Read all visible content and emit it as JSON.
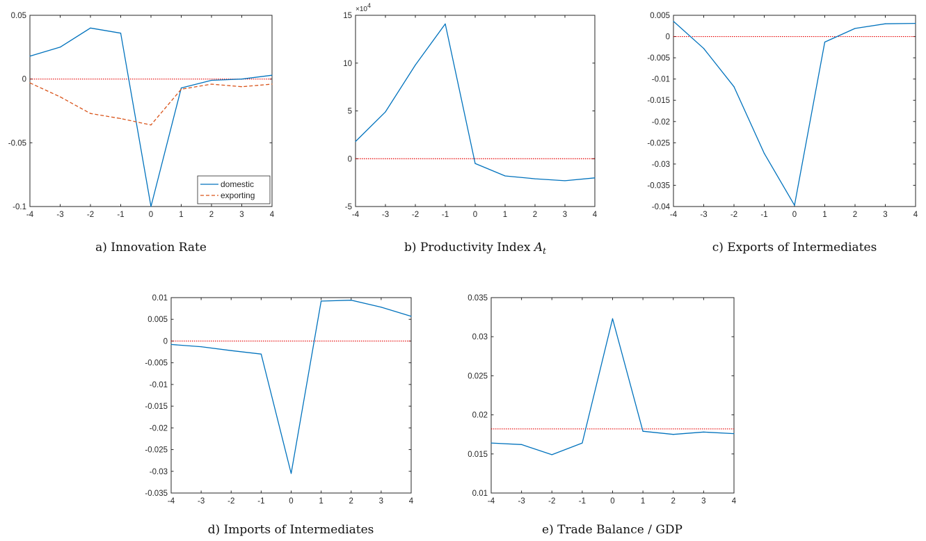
{
  "chart_data": [
    {
      "type": "line",
      "caption": "a) Innovation Rate",
      "x": [
        -4,
        -3,
        -2,
        -1,
        0,
        1,
        2,
        3,
        4
      ],
      "xlim": [
        -4,
        4
      ],
      "ylim": [
        -0.1,
        0.05
      ],
      "yticks": [
        -0.1,
        -0.05,
        0,
        0.05
      ],
      "ytick_labels": [
        "-0.1",
        "-0.05",
        "0",
        "0.05"
      ],
      "reference_line": 0,
      "series": [
        {
          "name": "domestic",
          "style": "solid",
          "color": "#0072BD",
          "values": [
            0.018,
            0.025,
            0.04,
            0.036,
            -0.1,
            -0.007,
            -0.001,
            0.0,
            0.003
          ]
        },
        {
          "name": "exporting",
          "style": "dashed",
          "color": "#D95319",
          "values": [
            -0.003,
            -0.014,
            -0.027,
            -0.031,
            -0.036,
            -0.008,
            -0.004,
            -0.006,
            -0.004
          ]
        }
      ],
      "legend": "bottom-right"
    },
    {
      "type": "line",
      "caption": "b) Productivity Index A",
      "caption_sub": "t",
      "x": [
        -4,
        -3,
        -2,
        -1,
        0,
        1,
        2,
        3,
        4
      ],
      "xlim": [
        -4,
        4
      ],
      "ylim": [
        -5,
        15
      ],
      "yticks": [
        -5,
        0,
        5,
        10,
        15
      ],
      "ytick_labels": [
        "-5",
        "0",
        "5",
        "10",
        "15"
      ],
      "exponent_label": "×10",
      "exponent_power": "4",
      "reference_line": 0,
      "series": [
        {
          "style": "solid",
          "color": "#0072BD",
          "values": [
            1.8,
            4.9,
            9.8,
            14.1,
            -0.5,
            -1.8,
            -2.1,
            -2.3,
            -2.0
          ]
        }
      ]
    },
    {
      "type": "line",
      "caption": "c) Exports of Intermediates",
      "x": [
        -4,
        -3,
        -2,
        -1,
        0,
        1,
        2,
        3,
        4
      ],
      "xlim": [
        -4,
        4
      ],
      "ylim": [
        -0.04,
        0.005
      ],
      "yticks": [
        -0.04,
        -0.035,
        -0.03,
        -0.025,
        -0.02,
        -0.015,
        -0.01,
        -0.005,
        0,
        0.005
      ],
      "ytick_labels": [
        "-0.04",
        "-0.035",
        "-0.03",
        "-0.025",
        "-0.02",
        "-0.015",
        "-0.01",
        "-0.005",
        "0",
        "0.005"
      ],
      "reference_line": 0,
      "series": [
        {
          "style": "solid",
          "color": "#0072BD",
          "values": [
            0.0036,
            -0.0028,
            -0.0118,
            -0.0275,
            -0.0397,
            -0.0013,
            0.0019,
            0.003,
            0.0031
          ]
        }
      ]
    },
    {
      "type": "line",
      "caption": "d) Imports of Intermediates",
      "x": [
        -4,
        -3,
        -2,
        -1,
        0,
        1,
        2,
        3,
        4
      ],
      "xlim": [
        -4,
        4
      ],
      "ylim": [
        -0.035,
        0.01
      ],
      "yticks": [
        -0.035,
        -0.03,
        -0.025,
        -0.02,
        -0.015,
        -0.01,
        -0.005,
        0,
        0.005,
        0.01
      ],
      "ytick_labels": [
        "-0.035",
        "-0.03",
        "-0.025",
        "-0.02",
        "-0.015",
        "-0.01",
        "-0.005",
        "0",
        "0.005",
        "0.01"
      ],
      "reference_line": 0,
      "series": [
        {
          "style": "solid",
          "color": "#0072BD",
          "values": [
            -0.0008,
            -0.0013,
            -0.0022,
            -0.003,
            -0.0305,
            0.0092,
            0.0094,
            0.0078,
            0.0057
          ]
        }
      ]
    },
    {
      "type": "line",
      "caption": "e) Trade Balance / GDP",
      "x": [
        -4,
        -3,
        -2,
        -1,
        0,
        1,
        2,
        3,
        4
      ],
      "xlim": [
        -4,
        4
      ],
      "ylim": [
        0.01,
        0.035
      ],
      "yticks": [
        0.01,
        0.015,
        0.02,
        0.025,
        0.03,
        0.035
      ],
      "ytick_labels": [
        "0.01",
        "0.015",
        "0.02",
        "0.025",
        "0.03",
        "0.035"
      ],
      "reference_line": 0.0182,
      "series": [
        {
          "style": "solid",
          "color": "#0072BD",
          "values": [
            0.0164,
            0.0162,
            0.0149,
            0.0164,
            0.0323,
            0.0179,
            0.0175,
            0.0178,
            0.0176
          ]
        }
      ]
    }
  ],
  "reference_line_color": "#E60000",
  "axis_color": "#262626"
}
